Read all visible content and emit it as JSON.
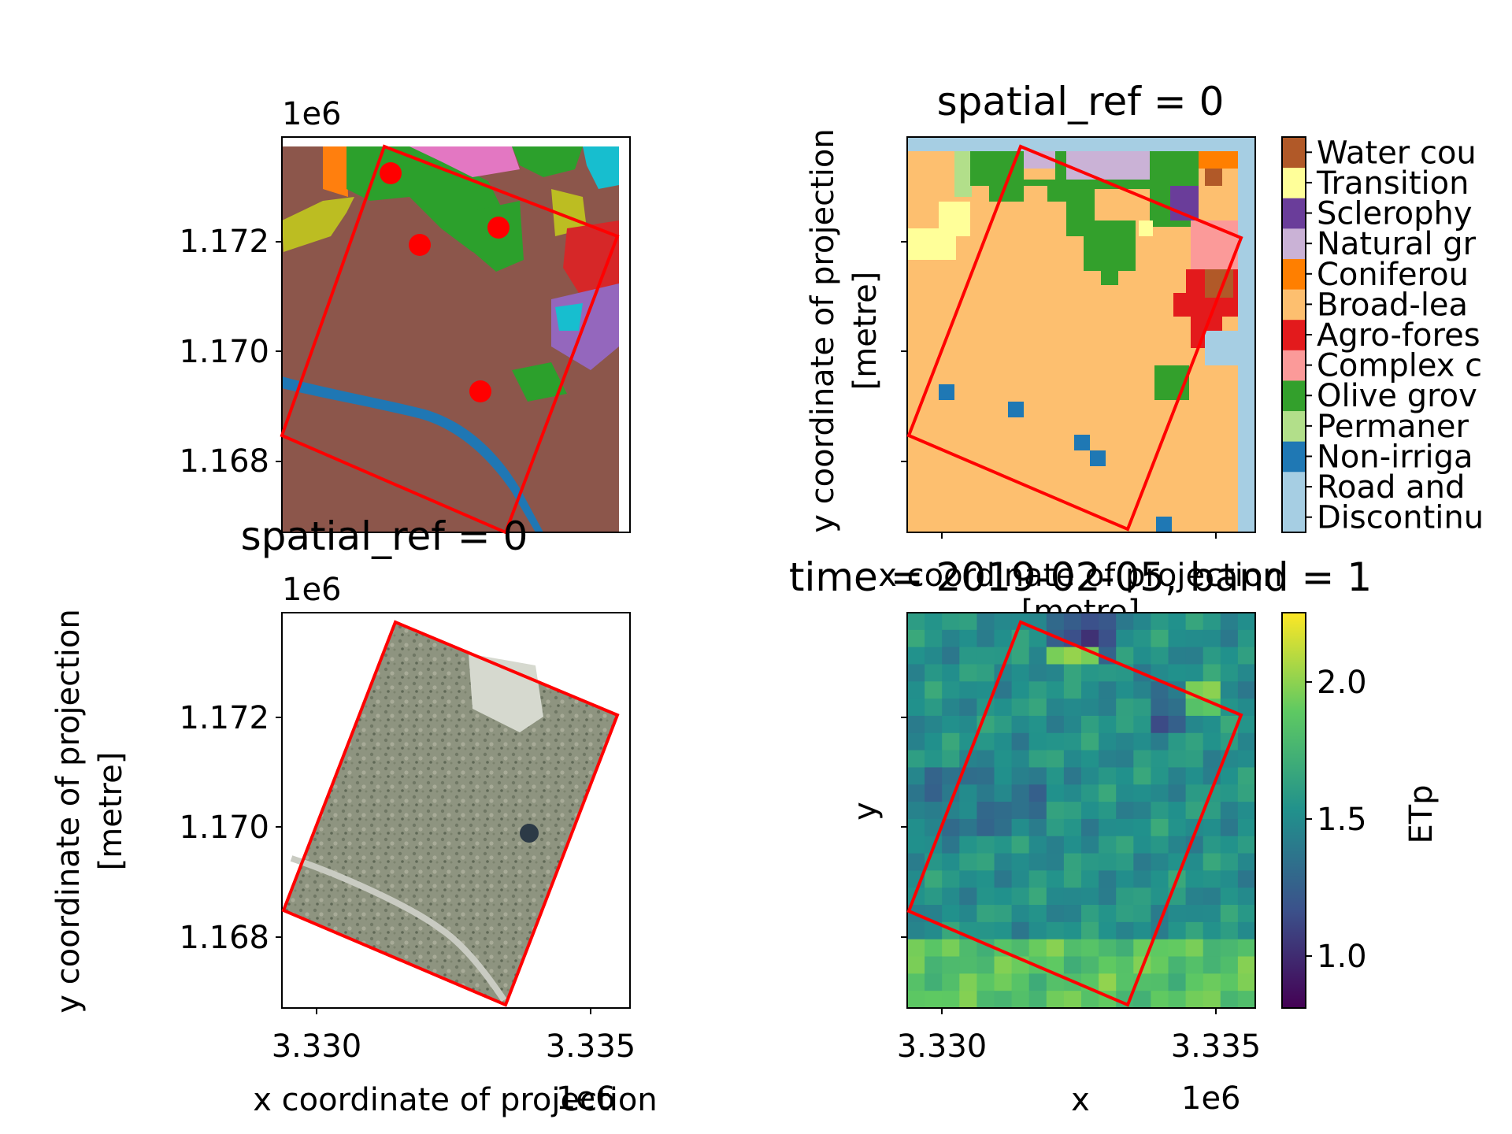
{
  "panels": {
    "top_left": {
      "offset_label": "1e6",
      "yticks": [
        "1.172",
        "1.170",
        "1.168"
      ],
      "bottom_title": "spatial_ref = 0"
    },
    "top_right": {
      "title": "spatial_ref = 0",
      "ylabel_line1": "y coordinate of projection",
      "ylabel_line2": "[metre]",
      "xlabel_line1": "x coordinate of projection",
      "xlabel_line2": "[metre]",
      "legend": [
        {
          "label": "Water cou",
          "color": "#b15928"
        },
        {
          "label": "Transition",
          "color": "#ffff99"
        },
        {
          "label": "Sclerophy",
          "color": "#6a3d9a"
        },
        {
          "label": "Natural gr",
          "color": "#cab2d6"
        },
        {
          "label": "Coniferou",
          "color": "#ff7f00"
        },
        {
          "label": "Broad-lea",
          "color": "#fdbf6f"
        },
        {
          "label": "Agro-fores",
          "color": "#e31a1c"
        },
        {
          "label": "Complex c",
          "color": "#fb9a99"
        },
        {
          "label": "Olive grov",
          "color": "#33a02c"
        },
        {
          "label": "Permaner",
          "color": "#b2df8a"
        },
        {
          "label": "Non-irriga",
          "color": "#1f78b4"
        },
        {
          "label": "Road and",
          "color": "#a6cee3"
        },
        {
          "label": "Discontinu",
          "color": "#a6cee3"
        }
      ]
    },
    "bottom_left": {
      "offset_label": "1e6",
      "yticks": [
        "1.172",
        "1.170",
        "1.168"
      ],
      "xticks": [
        "3.330",
        "3.335"
      ],
      "x_offset_label": "1e6",
      "ylabel_line1": "y coordinate of projection",
      "ylabel_line2": "[metre]",
      "xlabel_line1": "x coordinate of projection",
      "xlabel_line2": "[metre]"
    },
    "bottom_right": {
      "title": "time = 2019-02-05, band = 1",
      "xticks": [
        "3.330",
        "3.335"
      ],
      "x_offset_label": "1e6",
      "xlabel": "x",
      "ylabel": "y",
      "colorbar_label": "ETp",
      "colorbar_ticks": [
        "2.0",
        "1.5",
        "1.0"
      ]
    }
  },
  "chart_data": [
    {
      "type": "map",
      "panel": "top_left",
      "x_offset": "1e6",
      "y_offset": "1e6",
      "yticks": [
        1.172,
        1.17,
        1.168
      ],
      "ylim": [
        1.1667,
        1.1737
      ],
      "xlim": [
        3.3294,
        3.3357
      ],
      "overlay_polygon": [
        [
          3.3315,
          1.1736
        ],
        [
          3.3355,
          1.172
        ],
        [
          3.3334,
          1.1668
        ],
        [
          3.3294,
          1.1684
        ]
      ],
      "points": [
        [
          3.3314,
          1.1732
        ],
        [
          3.3319,
          1.1719
        ],
        [
          3.3331,
          1.1722
        ],
        [
          3.333,
          1.1692
        ]
      ],
      "colors": {
        "background": "#8c564b",
        "polygon": "#ff0000",
        "points": "#ff0000"
      }
    },
    {
      "type": "heatmap",
      "panel": "top_right",
      "title": "spatial_ref = 0",
      "categories": [
        "Water cou",
        "Transition",
        "Sclerophy",
        "Natural gr",
        "Coniferou",
        "Broad-lea",
        "Agro-fores",
        "Complex c",
        "Olive grov",
        "Permaner",
        "Non-irriga",
        "Road and",
        "Discontinu"
      ],
      "dominant_class": "Broad-lea"
    },
    {
      "type": "image",
      "panel": "bottom_left",
      "xticks": [
        3.33,
        3.335
      ],
      "yticks": [
        1.172,
        1.17,
        1.168
      ],
      "xlim": [
        3.3294,
        3.3357
      ],
      "ylim": [
        1.1667,
        1.1737
      ]
    },
    {
      "type": "heatmap",
      "panel": "bottom_right",
      "title": "time = 2019-02-05, band = 1",
      "variable": "ETp",
      "colormap": "viridis",
      "vmin": 0.8,
      "vmax": 2.2,
      "colorbar_ticks": [
        1.0,
        1.5,
        2.0
      ],
      "xticks": [
        3.33,
        3.335
      ]
    }
  ]
}
